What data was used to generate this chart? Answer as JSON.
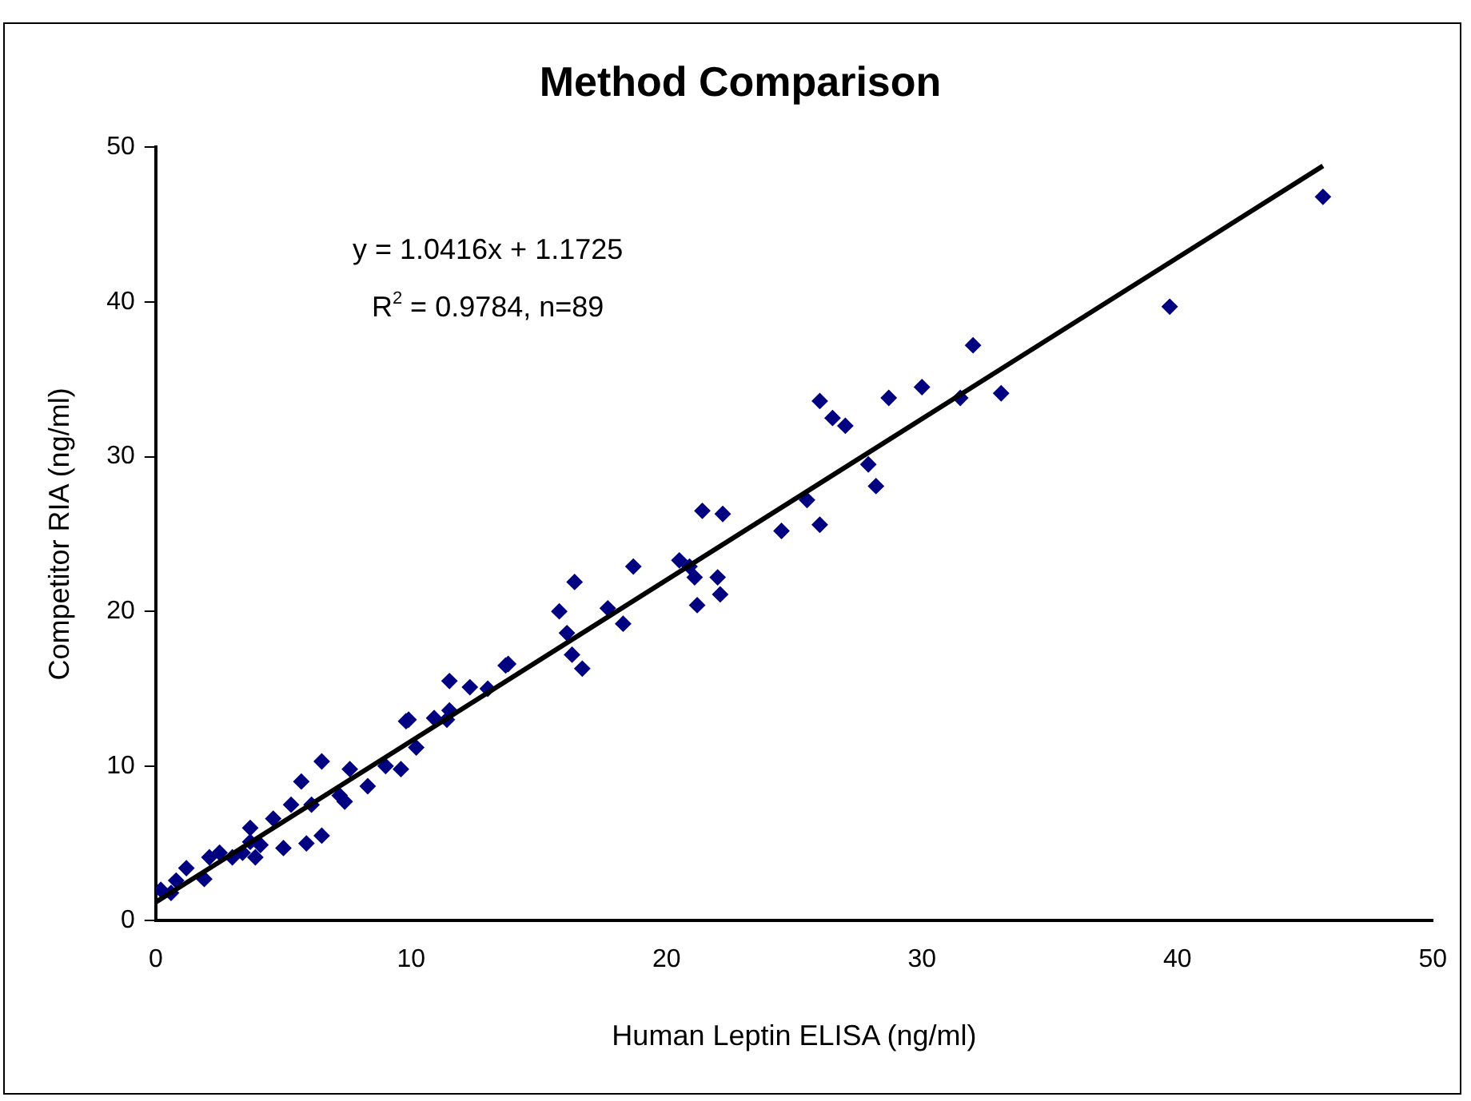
{
  "chart_data": {
    "type": "scatter",
    "title": "Method Comparison",
    "xlabel": "Human Leptin ELISA (ng/ml)",
    "ylabel": "Competitor RIA (ng/ml)",
    "annotations": [
      "y = 1.0416x + 1.1725",
      "R$^{2}$ = 0.9784, n=89"
    ],
    "xlim": [
      0,
      50
    ],
    "xticks": [
      0,
      10,
      20,
      30,
      40,
      50
    ],
    "ylim": [
      0,
      50
    ],
    "yticks": [
      0,
      10,
      20,
      30,
      40,
      50
    ],
    "grid": false,
    "legend": false,
    "marker": "diamond",
    "series": [
      {
        "color": "#000080",
        "x": [
          0.2,
          0.6,
          0.8,
          1.2,
          1.9,
          2.1,
          2.5,
          3.0,
          3.4,
          3.7,
          3.7,
          3.9,
          4.1,
          4.6,
          5.0,
          5.3,
          5.7,
          5.9,
          6.1,
          6.5,
          6.5,
          7.2,
          7.4,
          7.6,
          8.3,
          9.0,
          9.6,
          9.8,
          9.9,
          10.2,
          10.9,
          11.4,
          11.5,
          11.5,
          12.3,
          13.0,
          13.7,
          13.8,
          15.8,
          16.1,
          16.3,
          16.4,
          16.7,
          17.7,
          18.3,
          18.7,
          20.5,
          20.9,
          21.1,
          21.2,
          22.0,
          22.1,
          21.4,
          22.2,
          24.5,
          25.5,
          26.0,
          26.0,
          26.5,
          27.0,
          27.9,
          28.2,
          28.7,
          30.0,
          31.5,
          32.0,
          33.1,
          39.7,
          45.7
        ],
        "values": [
          2.0,
          1.8,
          2.6,
          3.4,
          2.7,
          4.1,
          4.4,
          4.1,
          4.4,
          6.0,
          5.1,
          4.1,
          4.9,
          6.6,
          4.7,
          7.5,
          9.0,
          5.0,
          7.5,
          10.3,
          5.5,
          8.1,
          7.7,
          9.8,
          8.7,
          10.0,
          9.8,
          12.9,
          13.0,
          11.2,
          13.1,
          13.0,
          13.6,
          15.5,
          15.1,
          15.0,
          16.5,
          16.6,
          20.0,
          18.6,
          17.2,
          21.9,
          16.3,
          20.2,
          19.2,
          22.9,
          23.3,
          22.9,
          22.2,
          20.4,
          22.2,
          21.1,
          26.5,
          26.3,
          25.2,
          27.2,
          25.6,
          33.6,
          32.5,
          32.0,
          29.5,
          28.1,
          33.8,
          34.5,
          33.8,
          37.2,
          34.1,
          39.7,
          46.8
        ]
      },
      {
        "type": "line",
        "color": "#000000",
        "x": [
          0,
          45.7
        ],
        "values": [
          1.2,
          48.8
        ],
        "marker": "none"
      }
    ]
  }
}
